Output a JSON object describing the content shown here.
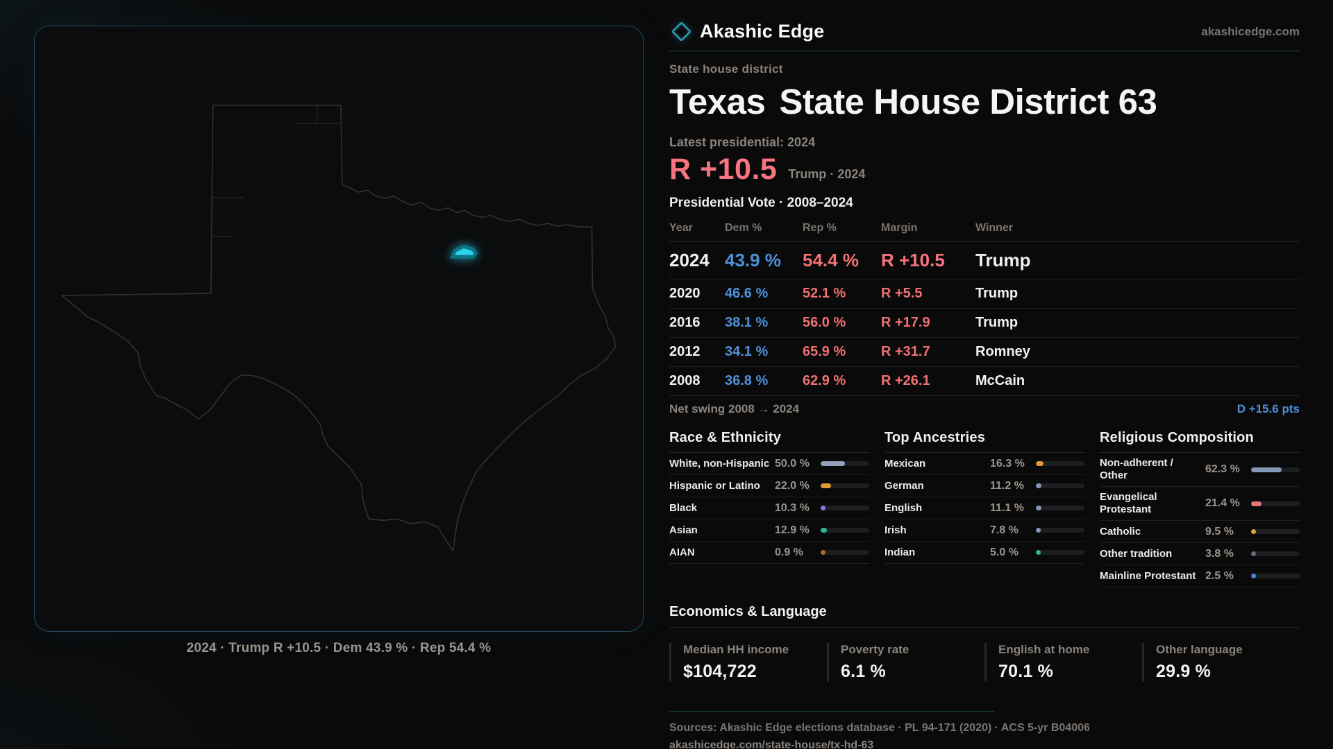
{
  "brand": {
    "name": "Akashic Edge",
    "domain": "akashicedge.com"
  },
  "map": {
    "caption": "2024 · Trump R +10.5 · Dem 43.9 % · Rep 54.4 %",
    "highlight_color": "#2bd2ea"
  },
  "header": {
    "kicker": "State house district",
    "title_prefix": "Texas",
    "title_main": "State House District 63",
    "latest_label": "Latest presidential: 2024",
    "headline_margin": "R +10.5",
    "headline_context": "Trump · 2024"
  },
  "vote_table": {
    "title": "Presidential Vote · 2008–2024",
    "columns": [
      "Year",
      "Dem %",
      "Rep %",
      "Margin",
      "Winner"
    ],
    "rows": [
      {
        "year": "2024",
        "dem": "43.9 %",
        "rep": "54.4 %",
        "margin": "R +10.5",
        "winner": "Trump"
      },
      {
        "year": "2020",
        "dem": "46.6 %",
        "rep": "52.1 %",
        "margin": "R +5.5",
        "winner": "Trump"
      },
      {
        "year": "2016",
        "dem": "38.1 %",
        "rep": "56.0 %",
        "margin": "R +17.9",
        "winner": "Trump"
      },
      {
        "year": "2012",
        "dem": "34.1 %",
        "rep": "65.9 %",
        "margin": "R +31.7",
        "winner": "Romney"
      },
      {
        "year": "2008",
        "dem": "36.8 %",
        "rep": "62.9 %",
        "margin": "R +26.1",
        "winner": "McCain"
      }
    ],
    "net_swing_label": "Net swing 2008 → 2024",
    "net_swing_value": "D +15.6 pts"
  },
  "demographics": [
    {
      "title": "Race & Ethnicity",
      "rows": [
        {
          "label": "White, non-Hispanic",
          "value": "50.0 %",
          "pct": 50.0,
          "color": "#93a2ba"
        },
        {
          "label": "Hispanic or Latino",
          "value": "22.0 %",
          "pct": 22.0,
          "color": "#dd9a35"
        },
        {
          "label": "Black",
          "value": "10.3 %",
          "pct": 10.3,
          "color": "#8b7ae8"
        },
        {
          "label": "Asian",
          "value": "12.9 %",
          "pct": 12.9,
          "color": "#2fb796"
        },
        {
          "label": "AIAN",
          "value": "0.9 %",
          "pct": 0.9,
          "color": "#b06a28"
        }
      ]
    },
    {
      "title": "Top Ancestries",
      "rows": [
        {
          "label": "Mexican",
          "value": "16.3 %",
          "pct": 16.3,
          "color": "#dd9a35"
        },
        {
          "label": "German",
          "value": "11.2 %",
          "pct": 11.2,
          "color": "#8398b4"
        },
        {
          "label": "English",
          "value": "11.1 %",
          "pct": 11.1,
          "color": "#8398b4"
        },
        {
          "label": "Irish",
          "value": "7.8 %",
          "pct": 7.8,
          "color": "#8398b4"
        },
        {
          "label": "Indian",
          "value": "5.0 %",
          "pct": 5.0,
          "color": "#2fb784"
        }
      ]
    },
    {
      "title": "Religious Composition",
      "rows": [
        {
          "label": "Non-adherent / Other",
          "value": "62.3 %",
          "pct": 62.3,
          "color": "#8398b4"
        },
        {
          "label": "Evangelical Protestant",
          "value": "21.4 %",
          "pct": 21.4,
          "color": "#e07878"
        },
        {
          "label": "Catholic",
          "value": "9.5 %",
          "pct": 9.5,
          "color": "#ddab2f"
        },
        {
          "label": "Other tradition",
          "value": "3.8 %",
          "pct": 3.8,
          "color": "#5f6d7d"
        },
        {
          "label": "Mainline Protestant",
          "value": "2.5 %",
          "pct": 2.5,
          "color": "#4d86d8"
        }
      ]
    }
  ],
  "economics": {
    "title": "Economics & Language",
    "stats": [
      {
        "label": "Median HH income",
        "value": "$104,722"
      },
      {
        "label": "Poverty rate",
        "value": "6.1 %"
      },
      {
        "label": "English at home",
        "value": "70.1 %"
      },
      {
        "label": "Other language",
        "value": "29.9 %"
      }
    ]
  },
  "footer": {
    "sources": "Sources: Akashic Edge elections database · PL 94-171 (2020) · ACS 5-yr B04006",
    "permalink": "akashicedge.com/state-house/tx-hd-63"
  },
  "colors": {
    "dem_blue": "#4f90d9",
    "rep_red": "#ef7171",
    "headline_red": "#f8737f",
    "accent_teal": "#2a93a8",
    "district_cyan": "#2bd2ea"
  }
}
